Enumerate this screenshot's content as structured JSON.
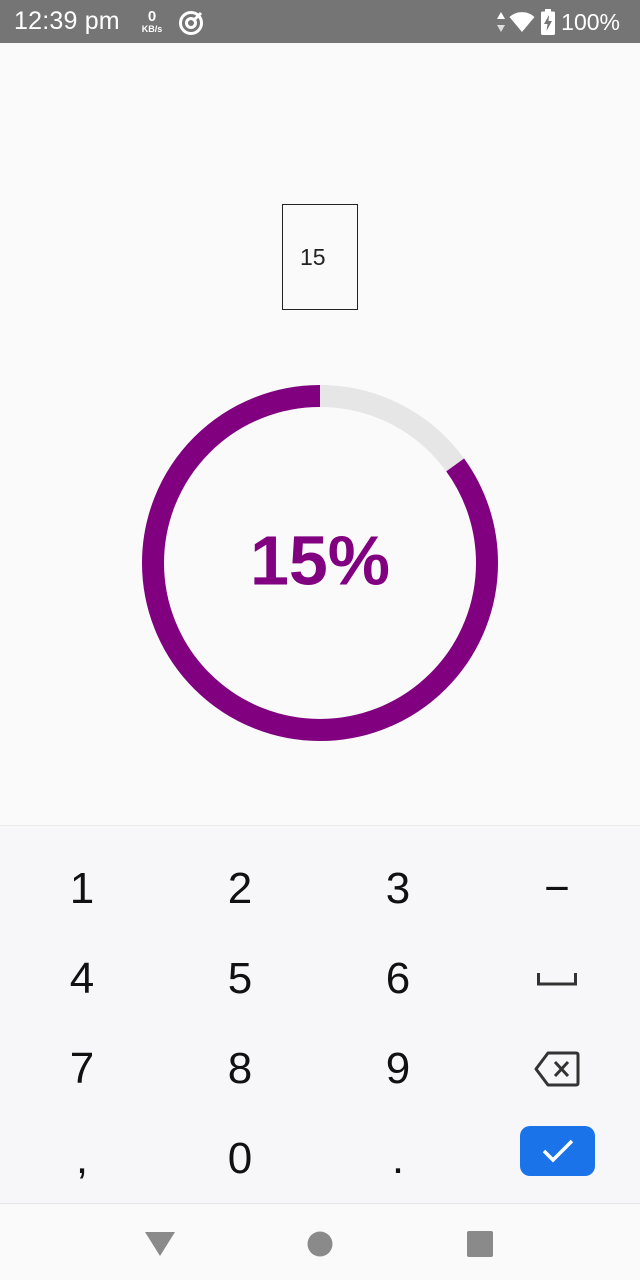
{
  "status_bar": {
    "time": "12:39 pm",
    "speed_value": "0",
    "speed_unit": "KB/s",
    "battery_percent": "100%",
    "icons": [
      "vpn-icon",
      "data-arrows-icon",
      "wifi-icon",
      "battery-charging-icon"
    ]
  },
  "main": {
    "input_value": "15",
    "progress": {
      "percent": 15,
      "label": "15%",
      "fill_color": "#800080",
      "track_color": "#e6e6e6"
    }
  },
  "keyboard": {
    "rows": [
      [
        "1",
        "2",
        "3",
        "−"
      ],
      [
        "4",
        "5",
        "6",
        "space"
      ],
      [
        "7",
        "8",
        "9",
        "backspace"
      ],
      [
        ",",
        "0",
        ".",
        "done"
      ]
    ],
    "ok_color": "#1a73e8",
    "icons": [
      "space-icon",
      "backspace-icon",
      "checkmark-icon"
    ]
  },
  "nav_bar": {
    "icons": [
      "back-icon",
      "home-icon",
      "recents-icon"
    ]
  }
}
